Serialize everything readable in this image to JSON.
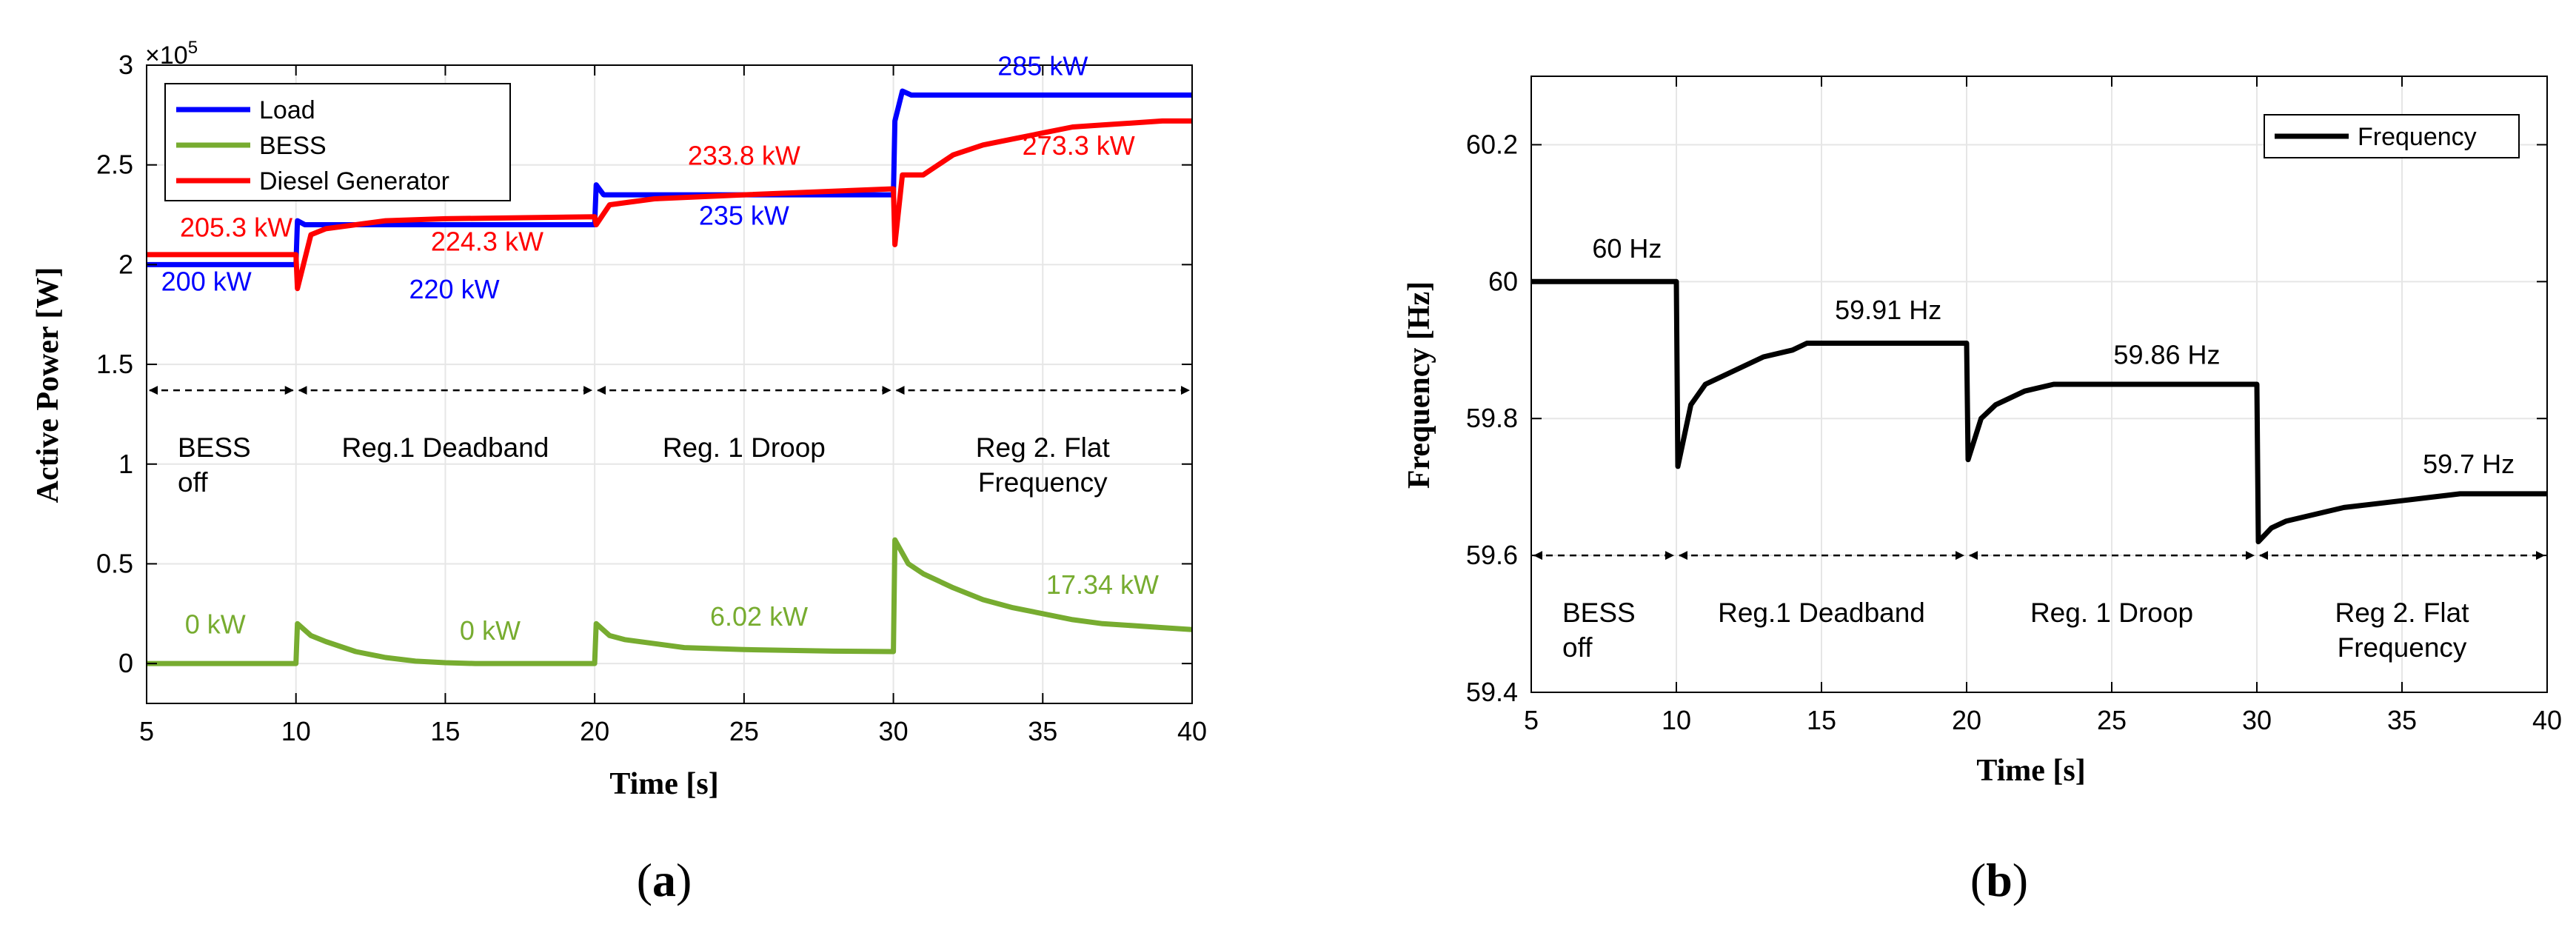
{
  "chart_data": [
    {
      "id": "a",
      "type": "line",
      "panel_label": "(a)",
      "panel_letter": "a",
      "xlabel": "Time [s]",
      "ylabel": "Active Power [W]",
      "y_multiplier": "×10",
      "y_multiplier_exp": "5",
      "xlim": [
        5,
        40
      ],
      "ylim": [
        -0.2,
        3.0
      ],
      "xticks": [
        5,
        10,
        15,
        20,
        25,
        30,
        35,
        40
      ],
      "yticks": [
        0,
        0.5,
        1,
        1.5,
        2,
        2.5,
        3
      ],
      "ytick_labels": [
        "0",
        "0.5",
        "1",
        "1.5",
        "2",
        "2.5",
        "3"
      ],
      "legend_position": "top-left",
      "series": [
        {
          "name": "Load",
          "color": "#0000ff",
          "points": [
            [
              5,
              2.0
            ],
            [
              10,
              2.0
            ],
            [
              10.05,
              2.22
            ],
            [
              10.3,
              2.2
            ],
            [
              20,
              2.2
            ],
            [
              20.05,
              2.4
            ],
            [
              20.3,
              2.35
            ],
            [
              30,
              2.35
            ],
            [
              30.05,
              2.72
            ],
            [
              30.3,
              2.87
            ],
            [
              30.6,
              2.85
            ],
            [
              40,
              2.85
            ]
          ]
        },
        {
          "name": "BESS",
          "color": "#77ac30",
          "points": [
            [
              5,
              0.0
            ],
            [
              10,
              0.0
            ],
            [
              10.05,
              0.2
            ],
            [
              10.5,
              0.14
            ],
            [
              11,
              0.11
            ],
            [
              12,
              0.06
            ],
            [
              13,
              0.03
            ],
            [
              14,
              0.012
            ],
            [
              15,
              0.004
            ],
            [
              16,
              0.0
            ],
            [
              20,
              0.0
            ],
            [
              20.05,
              0.2
            ],
            [
              20.5,
              0.14
            ],
            [
              21,
              0.12
            ],
            [
              22,
              0.1
            ],
            [
              23,
              0.08
            ],
            [
              25,
              0.07
            ],
            [
              28,
              0.062
            ],
            [
              30,
              0.06
            ],
            [
              30.05,
              0.62
            ],
            [
              30.5,
              0.5
            ],
            [
              31,
              0.45
            ],
            [
              32,
              0.38
            ],
            [
              33,
              0.32
            ],
            [
              34,
              0.28
            ],
            [
              35,
              0.25
            ],
            [
              36,
              0.22
            ],
            [
              37,
              0.2
            ],
            [
              38,
              0.19
            ],
            [
              39,
              0.18
            ],
            [
              40,
              0.17
            ]
          ]
        },
        {
          "name": "Diesel Generator",
          "color": "#ff0000",
          "points": [
            [
              5,
              2.05
            ],
            [
              10,
              2.05
            ],
            [
              10.05,
              1.88
            ],
            [
              10.5,
              2.15
            ],
            [
              11,
              2.18
            ],
            [
              12,
              2.2
            ],
            [
              13,
              2.22
            ],
            [
              15,
              2.23
            ],
            [
              20,
              2.24
            ],
            [
              20.05,
              2.2
            ],
            [
              20.5,
              2.3
            ],
            [
              21,
              2.31
            ],
            [
              22,
              2.33
            ],
            [
              25,
              2.35
            ],
            [
              30,
              2.38
            ],
            [
              30.05,
              2.1
            ],
            [
              30.3,
              2.45
            ],
            [
              31,
              2.45
            ],
            [
              32,
              2.55
            ],
            [
              33,
              2.6
            ],
            [
              34,
              2.63
            ],
            [
              35,
              2.66
            ],
            [
              36,
              2.69
            ],
            [
              37,
              2.7
            ],
            [
              38,
              2.71
            ],
            [
              39,
              2.72
            ],
            [
              40,
              2.72
            ]
          ]
        }
      ],
      "annotations": [
        {
          "text": "205.3 kW",
          "x": 8.0,
          "y": 2.14,
          "color": "#ff0000"
        },
        {
          "text": "200 kW",
          "x": 7.0,
          "y": 1.87,
          "color": "#0000ff"
        },
        {
          "text": "224.3 kW",
          "x": 16.4,
          "y": 2.07,
          "color": "#ff0000"
        },
        {
          "text": "220 kW",
          "x": 15.3,
          "y": 1.83,
          "color": "#0000ff"
        },
        {
          "text": "233.8 kW",
          "x": 25.0,
          "y": 2.5,
          "color": "#ff0000"
        },
        {
          "text": "235 kW",
          "x": 25.0,
          "y": 2.2,
          "color": "#0000ff"
        },
        {
          "text": "285 kW",
          "x": 35.0,
          "y": 2.95,
          "color": "#0000ff"
        },
        {
          "text": "273.3 kW",
          "x": 36.2,
          "y": 2.55,
          "color": "#ff0000"
        },
        {
          "text": "0 kW",
          "x": 7.3,
          "y": 0.15,
          "color": "#77ac30"
        },
        {
          "text": "0 kW",
          "x": 16.5,
          "y": 0.12,
          "color": "#77ac30"
        },
        {
          "text": "6.02 kW",
          "x": 25.5,
          "y": 0.19,
          "color": "#77ac30"
        },
        {
          "text": "17.34 kW",
          "x": 37.0,
          "y": 0.35,
          "color": "#77ac30"
        }
      ],
      "arrow_y": 1.37,
      "regions": [
        {
          "x0": 5,
          "x1": 10,
          "lines": [
            "BESS",
            "off"
          ]
        },
        {
          "x0": 10,
          "x1": 20,
          "lines": [
            "Reg.1 Deadband"
          ]
        },
        {
          "x0": 20,
          "x1": 30,
          "lines": [
            "Reg. 1 Droop"
          ]
        },
        {
          "x0": 30,
          "x1": 40,
          "lines": [
            "Reg 2. Flat",
            "Frequency"
          ]
        }
      ]
    },
    {
      "id": "b",
      "type": "line",
      "panel_label": "(b)",
      "panel_letter": "b",
      "xlabel": "Time [s]",
      "ylabel": "Frequency [Hz]",
      "xlim": [
        5,
        40
      ],
      "ylim": [
        59.4,
        60.3
      ],
      "xticks": [
        5,
        10,
        15,
        20,
        25,
        30,
        35,
        40
      ],
      "yticks": [
        59.4,
        59.6,
        59.8,
        60,
        60.2
      ],
      "ytick_labels": [
        "59.4",
        "59.6",
        "59.8",
        "60",
        "60.2"
      ],
      "legend_position": "top-right",
      "series": [
        {
          "name": "Frequency",
          "color": "#000000",
          "points": [
            [
              5,
              60.0
            ],
            [
              10,
              60.0
            ],
            [
              10.05,
              59.73
            ],
            [
              10.5,
              59.82
            ],
            [
              11,
              59.85
            ],
            [
              12,
              59.87
            ],
            [
              13,
              59.89
            ],
            [
              14,
              59.9
            ],
            [
              14.5,
              59.91
            ],
            [
              15,
              59.91
            ],
            [
              20,
              59.91
            ],
            [
              20.05,
              59.74
            ],
            [
              20.5,
              59.8
            ],
            [
              21,
              59.82
            ],
            [
              22,
              59.84
            ],
            [
              23,
              59.85
            ],
            [
              24,
              59.85
            ],
            [
              30,
              59.85
            ],
            [
              30.05,
              59.62
            ],
            [
              30.5,
              59.64
            ],
            [
              31,
              59.65
            ],
            [
              32,
              59.66
            ],
            [
              33,
              59.67
            ],
            [
              34,
              59.675
            ],
            [
              35,
              59.68
            ],
            [
              36,
              59.685
            ],
            [
              37,
              59.69
            ],
            [
              38,
              59.69
            ],
            [
              39,
              59.69
            ],
            [
              40,
              59.69
            ]
          ]
        }
      ],
      "annotations": [
        {
          "text": "60 Hz",
          "x": 8.3,
          "y": 60.035,
          "color": "#000000"
        },
        {
          "text": "59.91 Hz",
          "x": 17.3,
          "y": 59.945,
          "color": "#000000"
        },
        {
          "text": "59.86 Hz",
          "x": 26.9,
          "y": 59.88,
          "color": "#000000"
        },
        {
          "text": "59.7 Hz",
          "x": 37.3,
          "y": 59.72,
          "color": "#000000"
        }
      ],
      "arrow_y": 59.6,
      "regions": [
        {
          "x0": 5,
          "x1": 10,
          "lines": [
            "BESS",
            "off"
          ]
        },
        {
          "x0": 10,
          "x1": 20,
          "lines": [
            "Reg.1 Deadband"
          ]
        },
        {
          "x0": 20,
          "x1": 30,
          "lines": [
            "Reg. 1 Droop"
          ]
        },
        {
          "x0": 30,
          "x1": 40,
          "lines": [
            "Reg 2. Flat",
            "Frequency"
          ]
        }
      ]
    }
  ]
}
